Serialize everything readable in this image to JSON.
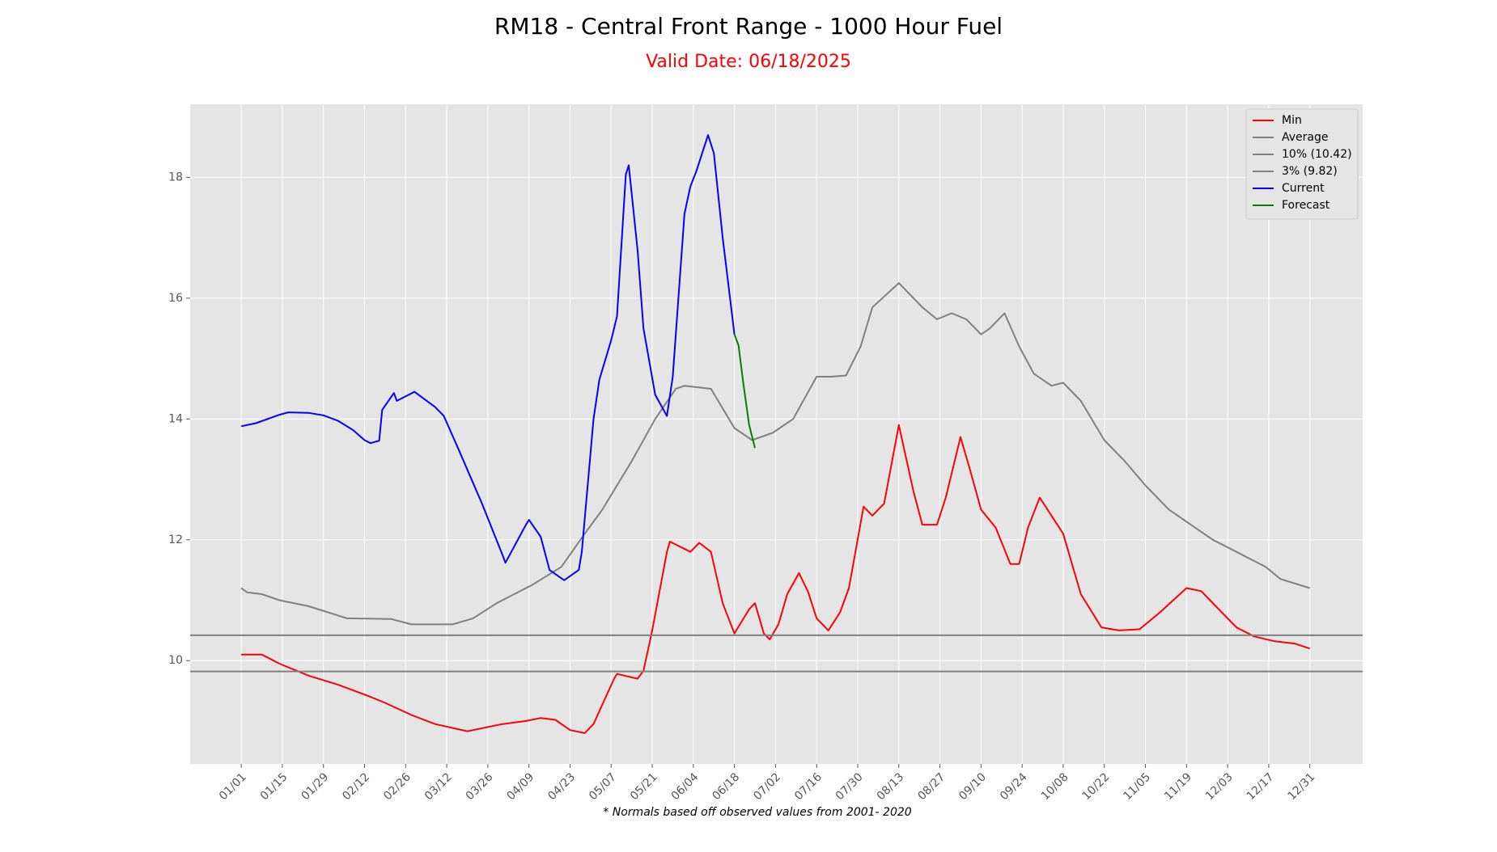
{
  "chart_data": {
    "type": "line",
    "title": "RM18 - Central Front Range - 1000 Hour Fuel",
    "subtitle": "Valid Date: 06/18/2025",
    "note": "* Normals based off observed values from 2001- 2020",
    "grid": true,
    "legend": "upper right",
    "xlim": [
      -17.4,
      382
    ],
    "ylim": [
      8.29,
      19.21
    ],
    "yticks": [
      10,
      12,
      14,
      16,
      18
    ],
    "xticks": [
      {
        "value": 0,
        "label": "01/01"
      },
      {
        "value": 14,
        "label": "01/15"
      },
      {
        "value": 28,
        "label": "01/29"
      },
      {
        "value": 42,
        "label": "02/12"
      },
      {
        "value": 56,
        "label": "02/26"
      },
      {
        "value": 70,
        "label": "03/12"
      },
      {
        "value": 84,
        "label": "03/26"
      },
      {
        "value": 98,
        "label": "04/09"
      },
      {
        "value": 112,
        "label": "04/23"
      },
      {
        "value": 126,
        "label": "05/07"
      },
      {
        "value": 140,
        "label": "05/21"
      },
      {
        "value": 154,
        "label": "06/04"
      },
      {
        "value": 168,
        "label": "06/18"
      },
      {
        "value": 182,
        "label": "07/02"
      },
      {
        "value": 196,
        "label": "07/16"
      },
      {
        "value": 210,
        "label": "07/30"
      },
      {
        "value": 224,
        "label": "08/13"
      },
      {
        "value": 238,
        "label": "08/27"
      },
      {
        "value": 252,
        "label": "09/10"
      },
      {
        "value": 266,
        "label": "09/24"
      },
      {
        "value": 280,
        "label": "10/08"
      },
      {
        "value": 294,
        "label": "10/22"
      },
      {
        "value": 308,
        "label": "11/05"
      },
      {
        "value": 322,
        "label": "11/19"
      },
      {
        "value": 336,
        "label": "12/03"
      },
      {
        "value": 350,
        "label": "12/17"
      },
      {
        "value": 364,
        "label": "12/31"
      }
    ],
    "series": [
      {
        "name": "Min",
        "color": "#ff0000",
        "x": [
          0,
          7,
          13,
          23,
          33,
          43,
          49,
          58,
          66,
          77,
          89,
          97,
          102,
          107,
          112,
          117,
          120,
          127,
          128,
          135,
          137,
          140,
          145,
          146,
          153,
          156,
          160,
          164,
          168,
          173,
          175,
          178,
          180,
          183,
          186,
          190,
          193,
          196,
          200,
          204,
          207,
          212,
          215,
          219,
          224,
          229,
          232,
          237,
          240,
          245,
          248,
          252,
          257,
          262,
          265,
          268,
          272,
          276,
          280,
          286,
          293,
          299,
          306,
          313,
          322,
          327,
          332,
          339,
          345,
          352,
          359,
          364
        ],
        "values": [
          10.1,
          10.1,
          9.95,
          9.75,
          9.6,
          9.42,
          9.3,
          9.1,
          8.95,
          8.83,
          8.95,
          9.0,
          9.05,
          9.02,
          8.85,
          8.8,
          8.95,
          9.7,
          9.78,
          9.7,
          9.83,
          10.5,
          11.8,
          11.97,
          11.8,
          11.95,
          11.8,
          10.95,
          10.45,
          10.85,
          10.95,
          10.45,
          10.35,
          10.6,
          11.1,
          11.45,
          11.15,
          10.7,
          10.5,
          10.8,
          11.2,
          12.55,
          12.4,
          12.6,
          13.9,
          12.8,
          12.25,
          12.25,
          12.7,
          13.7,
          13.2,
          12.5,
          12.2,
          11.6,
          11.6,
          12.2,
          12.7,
          12.4,
          12.1,
          11.1,
          10.55,
          10.5,
          10.52,
          10.8,
          11.2,
          11.15,
          10.9,
          10.55,
          10.4,
          10.32,
          10.28,
          10.2
        ]
      },
      {
        "name": "Average",
        "color": "#808080",
        "x": [
          0,
          2,
          7,
          13,
          23,
          36,
          51,
          58,
          72,
          79,
          87,
          99,
          109,
          117,
          123,
          133,
          141,
          148,
          151,
          160,
          168,
          174,
          181,
          188,
          196,
          201,
          206,
          211,
          215,
          224,
          232,
          237,
          242,
          247,
          252,
          255,
          260,
          265,
          270,
          276,
          280,
          286,
          294,
          301,
          308,
          316,
          322,
          331,
          339,
          349,
          354,
          364
        ],
        "values": [
          11.2,
          11.13,
          11.1,
          11.0,
          10.9,
          10.7,
          10.69,
          10.6,
          10.6,
          10.7,
          10.95,
          11.25,
          11.55,
          12.1,
          12.5,
          13.3,
          14.0,
          14.5,
          14.55,
          14.5,
          13.85,
          13.65,
          13.77,
          14.0,
          14.7,
          14.7,
          14.72,
          15.2,
          15.85,
          16.25,
          15.85,
          15.65,
          15.75,
          15.65,
          15.4,
          15.5,
          15.75,
          15.2,
          14.75,
          14.55,
          14.6,
          14.3,
          13.65,
          13.3,
          12.9,
          12.5,
          12.3,
          12.0,
          11.8,
          11.55,
          11.35,
          11.2
        ]
      },
      {
        "name": "10% (10.42)",
        "color": "#808080",
        "hline": 10.42
      },
      {
        "name": "3% (9.82)",
        "color": "#808080",
        "hline": 9.82
      },
      {
        "name": "Current",
        "color": "#0000ff",
        "x": [
          0,
          5,
          13,
          16,
          23,
          28,
          33,
          38,
          42,
          44,
          47,
          48,
          52,
          53,
          59,
          66,
          69,
          74,
          82,
          89,
          90,
          97,
          98,
          102,
          105,
          110,
          115,
          116,
          120,
          122,
          126,
          128,
          131,
          132,
          135,
          137,
          141,
          145,
          147,
          151,
          153,
          155,
          159,
          161,
          164,
          167,
          168
        ],
        "values": [
          13.88,
          13.93,
          14.07,
          14.11,
          14.1,
          14.06,
          13.97,
          13.82,
          13.65,
          13.6,
          13.64,
          14.15,
          14.43,
          14.3,
          14.45,
          14.2,
          14.05,
          13.5,
          12.6,
          11.75,
          11.62,
          12.25,
          12.33,
          12.05,
          11.5,
          11.33,
          11.5,
          11.8,
          14.0,
          14.65,
          15.3,
          15.7,
          18.05,
          18.2,
          16.8,
          15.5,
          14.4,
          14.05,
          14.7,
          17.4,
          17.85,
          18.1,
          18.7,
          18.4,
          17.0,
          15.8,
          15.4
        ]
      },
      {
        "name": "Forecast",
        "color": "#008000",
        "x": [
          168,
          169.4,
          171,
          173,
          175
        ],
        "values": [
          15.4,
          15.22,
          14.6,
          13.9,
          13.52
        ]
      }
    ]
  }
}
